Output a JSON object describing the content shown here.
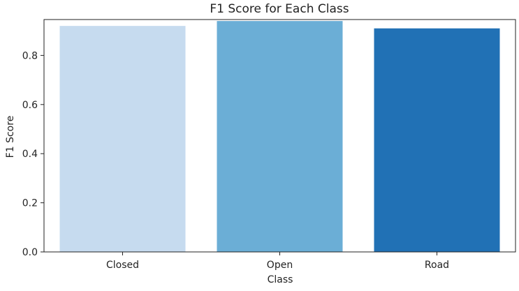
{
  "chart_data": {
    "type": "bar",
    "title": "F1 Score for Each Class",
    "xlabel": "Class",
    "ylabel": "F1 Score",
    "categories": [
      "Closed",
      "Open",
      "Road"
    ],
    "values": [
      0.92,
      0.94,
      0.91
    ],
    "ylim": [
      0,
      0.946
    ],
    "yticks": [
      "0.0",
      "0.2",
      "0.4",
      "0.6",
      "0.8"
    ],
    "grid": false,
    "legend": "none",
    "colors": [
      "#c6dbef",
      "#6baed6",
      "#2171b5"
    ]
  }
}
